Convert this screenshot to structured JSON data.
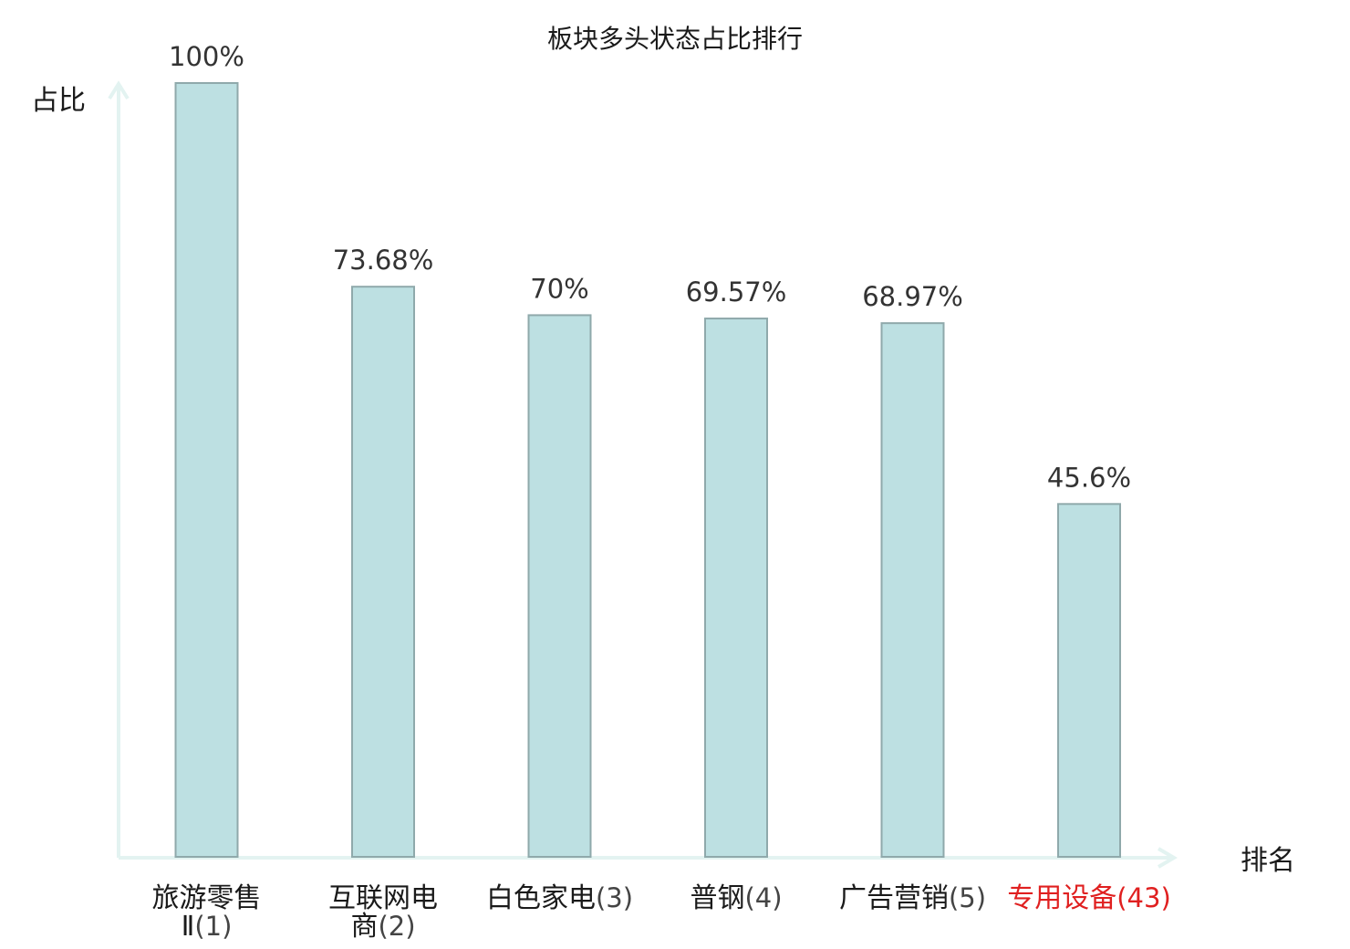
{
  "chart_data": {
    "type": "bar",
    "title": "板块多头状态占比排行",
    "ylabel": "占比",
    "xlabel": "排名",
    "ylim": [
      0,
      100
    ],
    "grid": false,
    "categories": [
      {
        "name": "旅游零售Ⅱ",
        "rank": "(1)",
        "highlight": false
      },
      {
        "name": "互联网电商",
        "rank": "(2)",
        "highlight": false
      },
      {
        "name": "白色家电",
        "rank": "(3)",
        "highlight": false
      },
      {
        "name": "普钢",
        "rank": "(4)",
        "highlight": false
      },
      {
        "name": "广告营销",
        "rank": "(5)",
        "highlight": false
      },
      {
        "name": "专用设备",
        "rank": "(43)",
        "highlight": true
      }
    ],
    "values": [
      100,
      73.68,
      70,
      69.57,
      68.97,
      45.6
    ],
    "value_labels": [
      "100%",
      "73.68%",
      "70%",
      "69.57%",
      "68.97%",
      "45.6%"
    ],
    "colors": {
      "bar_fill": "#bde0e2",
      "bar_stroke": "#8fa9ab",
      "axis": "#e3f3f1",
      "highlight_text": "#e02020",
      "normal_text": "#1a1a1a",
      "rank_text": "#444444"
    }
  }
}
